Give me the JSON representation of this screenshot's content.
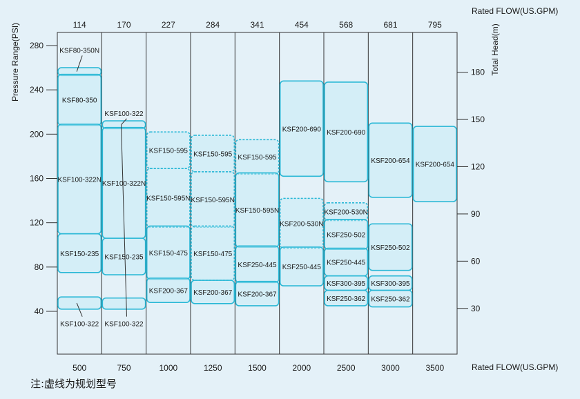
{
  "chart_data": {
    "type": "range-bar",
    "title": "",
    "note": "注:虚线为规划型号",
    "x_bottom": {
      "label": "Rated FLOW(US.GPM)",
      "categories": [
        "500",
        "750",
        "1000",
        "1250",
        "1500",
        "2000",
        "2500",
        "3000",
        "3500"
      ]
    },
    "x_top": {
      "label": "Rated FLOW(US.GPM)",
      "categories": [
        "114",
        "170",
        "227",
        "284",
        "341",
        "454",
        "568",
        "681",
        "795"
      ]
    },
    "y_left": {
      "label": "Pressure Range(PSI)",
      "ticks": [
        "40",
        "80",
        "120",
        "160",
        "200",
        "240",
        "280"
      ],
      "range": [
        20,
        290
      ]
    },
    "y_right": {
      "label": "Total Head(m)",
      "ticks": [
        "30",
        "60",
        "90",
        "120",
        "150",
        "180"
      ]
    },
    "colors": {
      "box": "#2ab8d6",
      "fill": "#c2eaf6",
      "line": "#333333",
      "background": "#e4f1f8"
    },
    "items": [
      {
        "col": 0,
        "name": "KSF80-350N",
        "low": 253,
        "high": 260,
        "dashed": false
      },
      {
        "col": 0,
        "name": "KSF80-350",
        "low": 208,
        "high": 254,
        "dashed": false
      },
      {
        "col": 0,
        "name": "KSF100-322N",
        "low": 110,
        "high": 209,
        "dashed": false
      },
      {
        "col": 0,
        "name": "KSF150-235",
        "low": 75,
        "high": 110,
        "dashed": false
      },
      {
        "col": 0,
        "name": "KSF100-322",
        "low": 42,
        "high": 53,
        "dashed": false
      },
      {
        "col": 1,
        "name": "KSF100-322",
        "low": 205,
        "high": 212,
        "dashed": false
      },
      {
        "col": 1,
        "name": "KSF100-322N",
        "low": 106,
        "high": 206,
        "dashed": false
      },
      {
        "col": 1,
        "name": "KSF150-235",
        "low": 73,
        "high": 106,
        "dashed": false
      },
      {
        "col": 1,
        "name": "KSF100-322",
        "low": 42,
        "high": 52,
        "dashed": false
      },
      {
        "col": 2,
        "name": "KSF150-595",
        "low": 169,
        "high": 202,
        "dashed": true
      },
      {
        "col": 2,
        "name": "KSF150-595N",
        "low": 116,
        "high": 169,
        "dashed": true
      },
      {
        "col": 2,
        "name": "KSF150-475",
        "low": 69,
        "high": 117,
        "dashed": false
      },
      {
        "col": 2,
        "name": "KSF200-367",
        "low": 48,
        "high": 70,
        "dashed": false
      },
      {
        "col": 3,
        "name": "KSF150-595",
        "low": 166,
        "high": 199,
        "dashed": true
      },
      {
        "col": 3,
        "name": "KSF150-595N",
        "low": 116,
        "high": 166,
        "dashed": true
      },
      {
        "col": 3,
        "name": "KSF150-475",
        "low": 68,
        "high": 117,
        "dashed": true
      },
      {
        "col": 3,
        "name": "KSF200-367",
        "low": 47,
        "high": 68,
        "dashed": false
      },
      {
        "col": 4,
        "name": "KSF150-595",
        "low": 164,
        "high": 195,
        "dashed": true
      },
      {
        "col": 4,
        "name": "KSF150-595N",
        "low": 98,
        "high": 165,
        "dashed": false
      },
      {
        "col": 4,
        "name": "KSF250-445",
        "low": 66,
        "high": 99,
        "dashed": false
      },
      {
        "col": 4,
        "name": "KSF200-367",
        "low": 45,
        "high": 67,
        "dashed": false
      },
      {
        "col": 5,
        "name": "KSF200-690",
        "low": 162,
        "high": 248,
        "dashed": false
      },
      {
        "col": 5,
        "name": "KSF200-530N",
        "low": 97,
        "high": 142,
        "dashed": true
      },
      {
        "col": 5,
        "name": "KSF250-445",
        "low": 63,
        "high": 98,
        "dashed": false
      },
      {
        "col": 6,
        "name": "KSF200-690",
        "low": 157,
        "high": 247,
        "dashed": false
      },
      {
        "col": 6,
        "name": "KSF200-530N",
        "low": 122,
        "high": 138,
        "dashed": true
      },
      {
        "col": 6,
        "name": "KSF250-502",
        "low": 96,
        "high": 123,
        "dashed": false
      },
      {
        "col": 6,
        "name": "KSF250-445",
        "low": 72,
        "high": 97,
        "dashed": false
      },
      {
        "col": 6,
        "name": "KSF300-395",
        "low": 59,
        "high": 72,
        "dashed": false
      },
      {
        "col": 6,
        "name": "KSF250-362",
        "low": 45,
        "high": 59,
        "dashed": false
      },
      {
        "col": 7,
        "name": "KSF200-654",
        "low": 143,
        "high": 210,
        "dashed": false
      },
      {
        "col": 7,
        "name": "KSF250-502",
        "low": 77,
        "high": 119,
        "dashed": false
      },
      {
        "col": 7,
        "name": "KSF300-395",
        "low": 59,
        "high": 72,
        "dashed": false
      },
      {
        "col": 7,
        "name": "KSF250-362",
        "low": 44,
        "high": 59,
        "dashed": false
      },
      {
        "col": 8,
        "name": "KSF200-654",
        "low": 139,
        "high": 207,
        "dashed": false
      }
    ],
    "leader_labels": [
      {
        "col": 0,
        "text": "KSF80-350N",
        "at": 276
      },
      {
        "col": 0,
        "text": "KSF100-322",
        "at": 29
      }
    ],
    "leader_labels_col1": [
      {
        "col": 1,
        "text": "KSF100-322",
        "at": 219
      },
      {
        "col": 1,
        "text": "KSF100-322",
        "at": 29
      }
    ]
  }
}
